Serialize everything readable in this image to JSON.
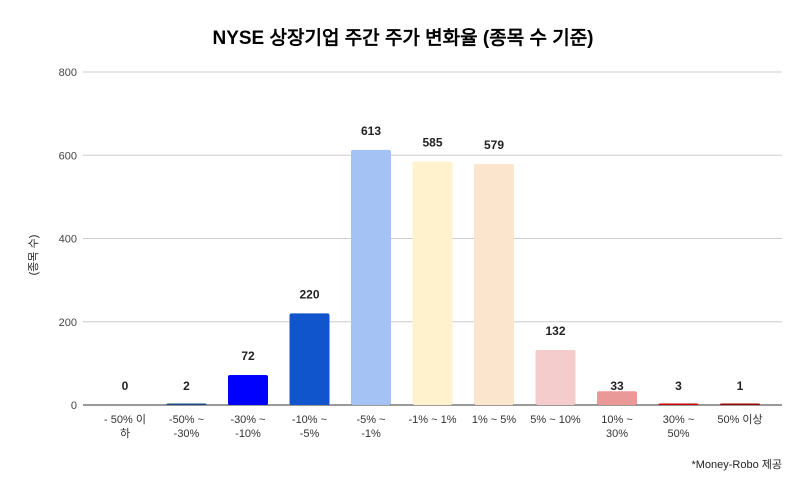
{
  "chart_data": {
    "type": "bar",
    "title": "NYSE 상장기업 주간 주가 변화율 (종목 수 기준)",
    "ylabel": "(종목 수)",
    "xlabel": "",
    "footnote": "*Money-Robo 제공",
    "ylim": [
      0,
      800
    ],
    "yticks": [
      0,
      200,
      400,
      600,
      800
    ],
    "grid": true,
    "categories": [
      [
        "- 50% 이",
        "하"
      ],
      [
        "-50% ~",
        "-30%"
      ],
      [
        "-30% ~",
        "-10%"
      ],
      [
        "-10% ~",
        "-5%"
      ],
      [
        "-5% ~",
        "-1%"
      ],
      [
        "-1% ~ 1%"
      ],
      [
        "1% ~ 5%"
      ],
      [
        "5% ~ 10%"
      ],
      [
        "10% ~",
        "30%"
      ],
      [
        "30% ~",
        "50%"
      ],
      [
        "50% 이상"
      ]
    ],
    "values": [
      0,
      2,
      72,
      220,
      613,
      585,
      579,
      132,
      33,
      3,
      1
    ],
    "colors": [
      "#1c4587",
      "#1c4587",
      "#0000ff",
      "#1155cc",
      "#a4c2f4",
      "#fff2cc",
      "#fce5cd",
      "#f4cccc",
      "#ea9999",
      "#cc0000",
      "#990000"
    ]
  }
}
